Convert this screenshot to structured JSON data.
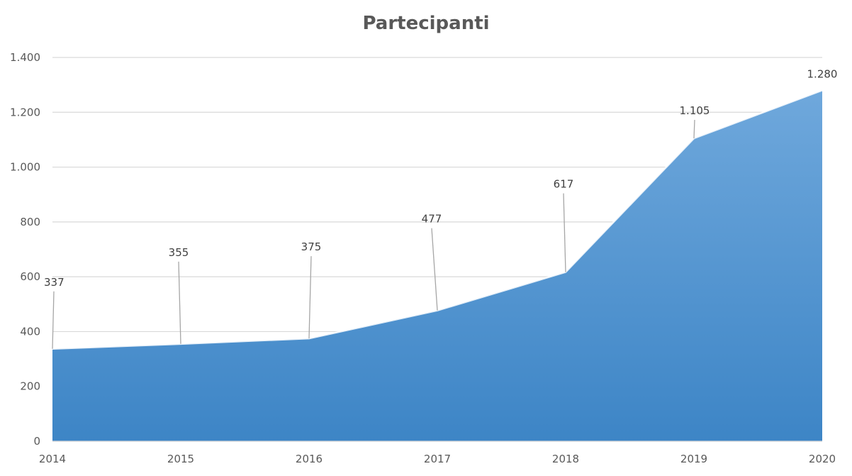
{
  "chart_data": {
    "type": "area",
    "title": "Partecipanti",
    "xlabel": "",
    "ylabel": "",
    "categories": [
      "2014",
      "2015",
      "2016",
      "2017",
      "2018",
      "2019",
      "2020"
    ],
    "series": [
      {
        "values": [
          337,
          355,
          375,
          477,
          617,
          1105,
          1280
        ]
      }
    ],
    "data_labels": [
      "337",
      "355",
      "375",
      "477",
      "617",
      "1.105",
      "1.280"
    ],
    "ylim": [
      0,
      1400
    ],
    "yticks": [
      {
        "value": 0,
        "label": "0"
      },
      {
        "value": 200,
        "label": "200"
      },
      {
        "value": 400,
        "label": "400"
      },
      {
        "value": 600,
        "label": "600"
      },
      {
        "value": 800,
        "label": "800"
      },
      {
        "value": 1000,
        "label": "1.000"
      },
      {
        "value": 1200,
        "label": "1.200"
      },
      {
        "value": 1400,
        "label": "1.400"
      }
    ],
    "grid": true,
    "legend": "none",
    "colors": {
      "area_top": "#6fa8dc",
      "area_bottom": "#3d85c6",
      "grid": "#d9d9d9",
      "leader": "#a6a6a6"
    }
  }
}
